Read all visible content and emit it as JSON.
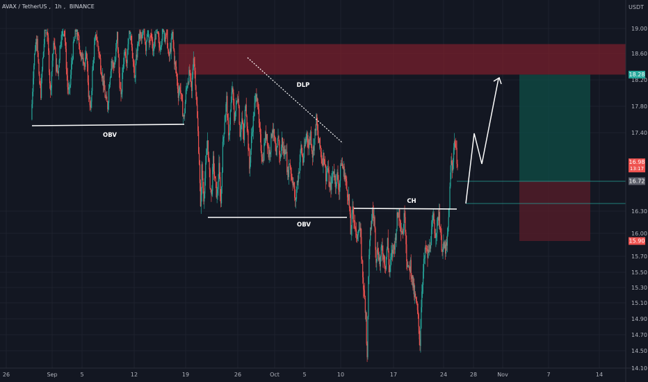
{
  "header": {
    "pair": "AVAX / TetherUS",
    "interval": "1h",
    "exchange": "BINANCE",
    "sep": ","
  },
  "axis": {
    "unit": "USDT"
  },
  "colors": {
    "bg": "#131722",
    "up": "#26a69a",
    "down": "#ef5350",
    "grid": "#1e222d",
    "text": "#b2b5be",
    "supply": "#7d1f2c",
    "target": "#0f4d45",
    "stop": "#5a1e2a"
  },
  "chart_data": {
    "type": "candlestick",
    "ylim": [
      14.1,
      19.3
    ],
    "y_ticks": [
      19.0,
      18.6,
      18.2,
      17.8,
      17.4,
      16.3,
      16.0,
      15.7,
      15.5,
      15.3,
      15.1,
      14.9,
      14.7,
      14.5,
      14.1
    ],
    "y_tick_labels": [
      "19.00",
      "18.60",
      "18.20",
      "17.80",
      "17.40",
      "16.30",
      "16.00",
      "15.70",
      "15.50",
      "15.30",
      "15.10",
      "14.90",
      "14.70",
      "14.50",
      "14.10"
    ],
    "x_tick_labels": [
      "26",
      "Sep",
      "5",
      "12",
      "19",
      "26",
      "Oct",
      "5",
      "10",
      "17",
      "24",
      "28",
      "Nov",
      "7",
      "14"
    ],
    "price_labels": [
      {
        "value": 18.28,
        "text": "18.28",
        "color": "#26a69a"
      },
      {
        "value": 16.98,
        "text": "16.98",
        "sub": "13:17",
        "color": "#ef5350"
      },
      {
        "value": 16.72,
        "text": "16.72",
        "color": "#5d606b"
      },
      {
        "value": 15.9,
        "text": "15.90",
        "color": "#ef5350"
      }
    ],
    "annotations": [
      {
        "text": "OBV"
      },
      {
        "text": "DLP"
      },
      {
        "text": "OBV"
      },
      {
        "text": "CH"
      }
    ],
    "zones": [
      {
        "name": "supply-zone",
        "y": [
          18.28,
          18.75
        ]
      },
      {
        "name": "target-zone",
        "y": [
          16.72,
          18.28
        ]
      },
      {
        "name": "stop-zone",
        "y": [
          15.9,
          16.72
        ]
      }
    ],
    "levels": [
      17.5,
      16.27,
      16.38,
      16.72,
      16.45
    ],
    "close_path": [
      [
        0,
        17.6
      ],
      [
        3,
        18.3
      ],
      [
        6,
        18.7
      ],
      [
        9,
        18.9
      ],
      [
        12,
        18.2
      ],
      [
        15,
        18.0
      ],
      [
        18,
        18.5
      ],
      [
        21,
        18.9
      ],
      [
        24,
        19.1
      ],
      [
        27,
        18.6
      ],
      [
        30,
        18.0
      ],
      [
        33,
        18.5
      ],
      [
        36,
        18.8
      ],
      [
        39,
        18.4
      ],
      [
        42,
        18.3
      ],
      [
        45,
        18.7
      ],
      [
        48,
        19.0
      ],
      [
        51,
        19.2
      ],
      [
        54,
        18.6
      ],
      [
        57,
        18.1
      ],
      [
        60,
        18.0
      ],
      [
        63,
        18.4
      ],
      [
        66,
        18.7
      ],
      [
        69,
        18.9
      ],
      [
        72,
        19.1
      ],
      [
        75,
        18.8
      ],
      [
        78,
        18.5
      ],
      [
        81,
        18.6
      ],
      [
        84,
        18.4
      ],
      [
        87,
        18.6
      ],
      [
        90,
        18.0
      ],
      [
        93,
        17.7
      ],
      [
        96,
        18.3
      ],
      [
        99,
        18.7
      ],
      [
        102,
        18.9
      ],
      [
        105,
        18.7
      ],
      [
        108,
        18.5
      ],
      [
        111,
        18.3
      ],
      [
        114,
        18.1
      ],
      [
        117,
        17.9
      ],
      [
        120,
        17.8
      ],
      [
        123,
        18.2
      ],
      [
        126,
        18.5
      ],
      [
        129,
        18.4
      ],
      [
        132,
        18.5
      ],
      [
        135,
        18.9
      ],
      [
        138,
        18.3
      ],
      [
        141,
        17.9
      ],
      [
        144,
        18.4
      ],
      [
        147,
        18.7
      ],
      [
        150,
        18.5
      ],
      [
        153,
        18.9
      ],
      [
        156,
        19.1
      ],
      [
        159,
        18.6
      ],
      [
        162,
        18.2
      ],
      [
        165,
        18.5
      ],
      [
        168,
        18.8
      ],
      [
        171,
        18.9
      ],
      [
        174,
        18.8
      ],
      [
        177,
        19.0
      ],
      [
        180,
        18.7
      ],
      [
        183,
        19.1
      ],
      [
        186,
        19.2
      ],
      [
        189,
        18.8
      ],
      [
        192,
        18.6
      ],
      [
        195,
        18.9
      ],
      [
        198,
        19.0
      ],
      [
        201,
        18.7
      ],
      [
        204,
        18.8
      ],
      [
        207,
        19.0
      ],
      [
        210,
        19.3
      ],
      [
        213,
        18.9
      ],
      [
        216,
        18.5
      ],
      [
        219,
        18.7
      ],
      [
        222,
        18.9
      ],
      [
        225,
        18.5
      ],
      [
        228,
        18.3
      ],
      [
        231,
        18.0
      ],
      [
        234,
        18.1
      ],
      [
        237,
        17.8
      ],
      [
        240,
        17.6
      ],
      [
        243,
        18.0
      ],
      [
        246,
        18.2
      ],
      [
        249,
        18.3
      ],
      [
        252,
        18.0
      ],
      [
        255,
        18.6
      ],
      [
        258,
        18.2
      ],
      [
        261,
        17.6
      ],
      [
        264,
        17.0
      ],
      [
        266,
        16.3
      ],
      [
        268,
        16.9
      ],
      [
        271,
        16.5
      ],
      [
        274,
        16.9
      ],
      [
        277,
        17.3
      ],
      [
        280,
        16.8
      ],
      [
        283,
        16.5
      ],
      [
        286,
        17.0
      ],
      [
        289,
        16.7
      ],
      [
        292,
        16.5
      ],
      [
        295,
        16.9
      ],
      [
        298,
        16.4
      ],
      [
        301,
        17.2
      ],
      [
        304,
        17.6
      ],
      [
        307,
        17.9
      ],
      [
        310,
        17.3
      ],
      [
        313,
        17.7
      ],
      [
        316,
        18.1
      ],
      [
        319,
        17.6
      ],
      [
        322,
        17.8
      ],
      [
        325,
        18.0
      ],
      [
        328,
        17.4
      ],
      [
        331,
        17.6
      ],
      [
        334,
        17.3
      ],
      [
        337,
        17.9
      ],
      [
        340,
        17.4
      ],
      [
        343,
        16.9
      ],
      [
        346,
        17.3
      ],
      [
        349,
        17.6
      ],
      [
        352,
        17.9
      ],
      [
        355,
        18.0
      ],
      [
        358,
        17.5
      ],
      [
        361,
        17.2
      ],
      [
        364,
        17.0
      ],
      [
        367,
        17.3
      ],
      [
        370,
        17.4
      ],
      [
        373,
        17.1
      ],
      [
        376,
        17.2
      ],
      [
        379,
        17.5
      ],
      [
        382,
        17.3
      ],
      [
        385,
        17.0
      ],
      [
        388,
        17.4
      ],
      [
        391,
        17.0
      ],
      [
        394,
        17.3
      ],
      [
        397,
        17.1
      ],
      [
        400,
        17.2
      ],
      [
        403,
        16.8
      ],
      [
        406,
        17.0
      ],
      [
        409,
        16.8
      ],
      [
        412,
        16.7
      ],
      [
        415,
        16.4
      ],
      [
        418,
        16.7
      ],
      [
        421,
        16.9
      ],
      [
        424,
        17.2
      ],
      [
        427,
        17.0
      ],
      [
        430,
        17.2
      ],
      [
        433,
        17.4
      ],
      [
        436,
        17.2
      ],
      [
        439,
        17.4
      ],
      [
        442,
        17.1
      ],
      [
        445,
        17.3
      ],
      [
        448,
        17.6
      ],
      [
        451,
        17.3
      ],
      [
        454,
        17.2
      ],
      [
        457,
        17.0
      ],
      [
        460,
        17.1
      ],
      [
        463,
        16.8
      ],
      [
        466,
        16.9
      ],
      [
        469,
        16.6
      ],
      [
        472,
        16.7
      ],
      [
        475,
        16.9
      ],
      [
        478,
        16.7
      ],
      [
        481,
        16.8
      ],
      [
        484,
        16.6
      ],
      [
        487,
        17.0
      ],
      [
        490,
        16.9
      ],
      [
        493,
        16.8
      ],
      [
        496,
        16.6
      ],
      [
        499,
        16.5
      ],
      [
        502,
        16.0
      ],
      [
        505,
        16.3
      ],
      [
        508,
        16.2
      ],
      [
        511,
        15.9
      ],
      [
        514,
        16.1
      ],
      [
        517,
        16.0
      ],
      [
        520,
        15.6
      ],
      [
        523,
        15.2
      ],
      [
        526,
        15.0
      ],
      [
        528,
        14.3
      ],
      [
        530,
        15.5
      ],
      [
        533,
        16.0
      ],
      [
        536,
        16.3
      ],
      [
        539,
        16.2
      ],
      [
        542,
        15.7
      ],
      [
        545,
        15.8
      ],
      [
        548,
        15.6
      ],
      [
        551,
        15.8
      ],
      [
        554,
        15.7
      ],
      [
        557,
        15.6
      ],
      [
        560,
        15.9
      ],
      [
        563,
        15.5
      ],
      [
        566,
        15.7
      ],
      [
        569,
        15.8
      ],
      [
        572,
        15.9
      ],
      [
        575,
        16.2
      ],
      [
        578,
        16.3
      ],
      [
        581,
        16.1
      ],
      [
        584,
        16.0
      ],
      [
        587,
        16.3
      ],
      [
        590,
        15.7
      ],
      [
        593,
        15.5
      ],
      [
        596,
        15.6
      ],
      [
        599,
        15.4
      ],
      [
        602,
        15.2
      ],
      [
        605,
        15.1
      ],
      [
        608,
        14.9
      ],
      [
        611,
        14.6
      ],
      [
        614,
        15.3
      ],
      [
        617,
        15.6
      ],
      [
        620,
        15.8
      ],
      [
        623,
        15.7
      ],
      [
        626,
        15.8
      ],
      [
        629,
        16.0
      ],
      [
        632,
        16.2
      ],
      [
        635,
        16.0
      ],
      [
        638,
        16.1
      ],
      [
        641,
        16.3
      ],
      [
        644,
        15.9
      ],
      [
        647,
        15.8
      ],
      [
        650,
        15.8
      ],
      [
        653,
        15.8
      ],
      [
        656,
        16.2
      ],
      [
        658,
        16.6
      ],
      [
        660,
        17.0
      ],
      [
        662,
        16.9
      ],
      [
        664,
        17.2
      ],
      [
        666,
        17.3
      ],
      [
        668,
        17.1
      ],
      [
        670,
        17.0
      ]
    ]
  }
}
